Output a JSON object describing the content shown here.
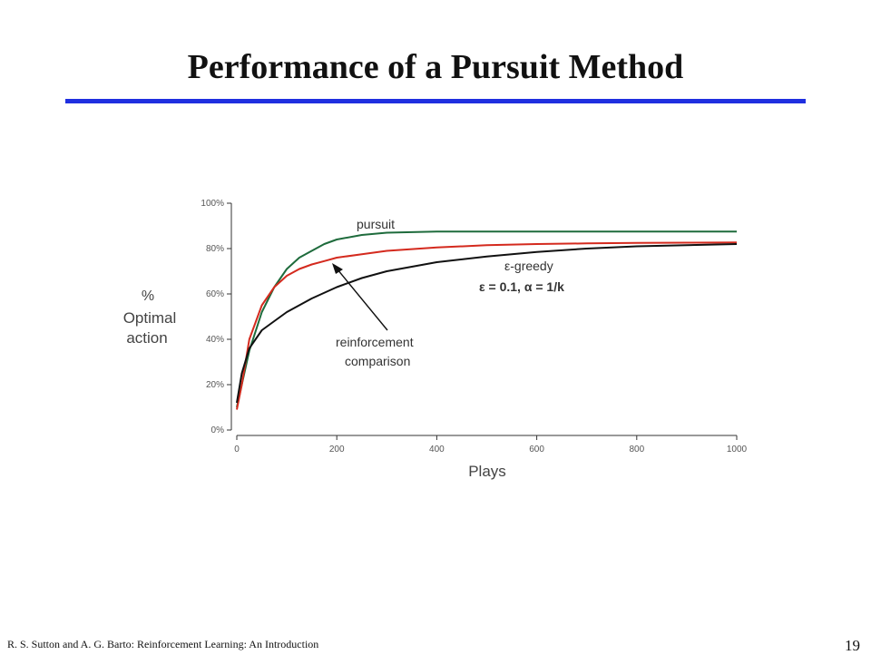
{
  "slide": {
    "title": "Performance of a Pursuit Method",
    "rule_color": "#1f2fe0",
    "footer": "R. S. Sutton and A. G. Barto: Reinforcement Learning: An Introduction",
    "page_number": "19"
  },
  "chart_data": {
    "type": "line",
    "xlabel": "Plays",
    "ylabel_lines": [
      "%",
      "Optimal",
      "action"
    ],
    "xlim": [
      0,
      1000
    ],
    "ylim": [
      0,
      100
    ],
    "x_ticks": [
      "0",
      "200",
      "400",
      "600",
      "800",
      "1000"
    ],
    "x_tick_values": [
      0,
      200,
      400,
      600,
      800,
      1000
    ],
    "y_ticks": [
      "0%",
      "20%",
      "40%",
      "60%",
      "80%",
      "100%"
    ],
    "y_tick_values": [
      0,
      20,
      40,
      60,
      80,
      100
    ],
    "series": [
      {
        "key": "pursuit",
        "color": "#1e6b3c",
        "x": [
          0,
          10,
          25,
          50,
          75,
          100,
          125,
          150,
          175,
          200,
          250,
          300,
          400,
          600,
          800,
          1000
        ],
        "y": [
          10,
          20,
          35,
          52,
          63,
          71,
          76,
          79,
          82,
          84,
          86,
          87,
          87.5,
          87.5,
          87.5,
          87.5
        ]
      },
      {
        "key": "reinforcement_comparison",
        "color": "#d42a1e",
        "x": [
          0,
          10,
          25,
          50,
          75,
          100,
          125,
          150,
          175,
          200,
          250,
          300,
          400,
          500,
          600,
          700,
          800,
          900,
          1000
        ],
        "y": [
          9,
          20,
          40,
          55,
          63,
          68,
          71,
          73,
          74.5,
          76,
          77.5,
          79,
          80.5,
          81.5,
          82,
          82.3,
          82.5,
          82.6,
          82.7
        ]
      },
      {
        "key": "epsilon_greedy",
        "color": "#111111",
        "x": [
          0,
          10,
          25,
          50,
          75,
          100,
          150,
          200,
          250,
          300,
          350,
          400,
          500,
          600,
          700,
          800,
          900,
          1000
        ],
        "y": [
          12,
          25,
          36,
          44,
          48,
          52,
          58,
          63,
          67,
          70,
          72,
          74,
          76.5,
          78.5,
          80,
          81,
          81.5,
          82
        ]
      }
    ],
    "annotations": {
      "pursuit": "pursuit",
      "greedy_line1": "ε-greedy",
      "greedy_line2": "ε = 0.1,  α = 1/k",
      "rc_line1": "reinforcement",
      "rc_line2": "comparison"
    }
  }
}
